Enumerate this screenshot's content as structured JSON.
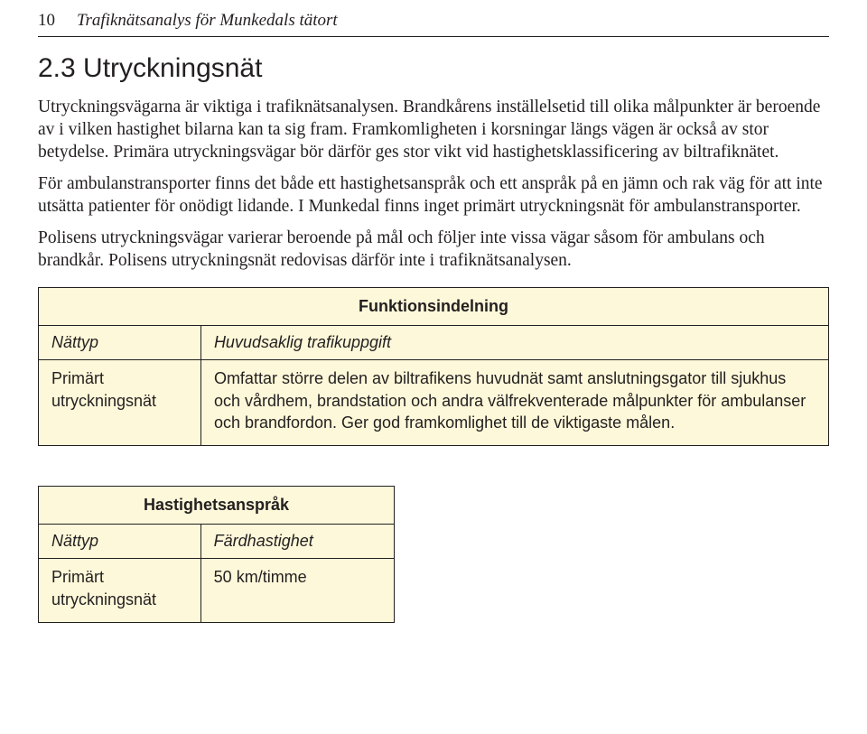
{
  "header": {
    "page_number": "10",
    "running_title": "Trafiknätsanalys för Munkedals tätort"
  },
  "section": {
    "heading": "2.3  Utryckningsnät",
    "paragraphs": [
      "Utryckningsvägarna är viktiga i trafiknätsanalysen. Brandkårens inställelsetid till olika målpunkter är beroende av i vilken hastighet bilarna kan ta sig fram. Framkomligheten i korsningar längs vägen är också av stor betydelse. Primära utryckningsvägar bör därför ges stor vikt vid hastighetsklassificering av biltrafiknätet.",
      "För ambulanstransporter finns det både ett hastighetsanspråk och ett anspråk på en jämn och rak väg för att inte utsätta patienter för onödigt lidande. I Munkedal finns inget primärt utryckningsnät för ambulanstransporter.",
      "Polisens utryckningsvägar varierar beroende på mål och följer inte vissa vägar såsom för ambulans och brandkår. Polisens utryckningsnät redovisas därför inte i trafiknätsanalysen."
    ]
  },
  "table1": {
    "title": "Funktionsindelning",
    "col_headers": [
      "Nättyp",
      "Huvudsaklig trafikuppgift"
    ],
    "row_label": "Primärt utryckningsnät",
    "row_value": "Omfattar större delen av biltrafikens huvudnät samt anslutningsgator till sjukhus och vårdhem, brandstation och andra välfrekventerade målpunkter för ambulanser och brandfordon. Ger god framkomlighet till de viktigaste målen.",
    "background": "#fdf8d9",
    "border_color": "#231f20",
    "font_family": "Arial",
    "font_size_pt": 13,
    "title_weight": "bold"
  },
  "table2": {
    "title": "Hastighetsanspråk",
    "col_headers": [
      "Nättyp",
      "Färdhastighet"
    ],
    "row_label": "Primärt utryckningsnät",
    "row_value": "50 km/timme",
    "background": "#fdf8d9",
    "border_color": "#231f20",
    "font_family": "Arial",
    "font_size_pt": 13,
    "title_weight": "bold"
  },
  "style": {
    "page_bg": "#ffffff",
    "text_color": "#231f20",
    "rule_color": "#231f20",
    "heading_font": "Arial",
    "heading_size_pt": 22,
    "body_font": "Times New Roman",
    "body_size_pt": 14
  }
}
